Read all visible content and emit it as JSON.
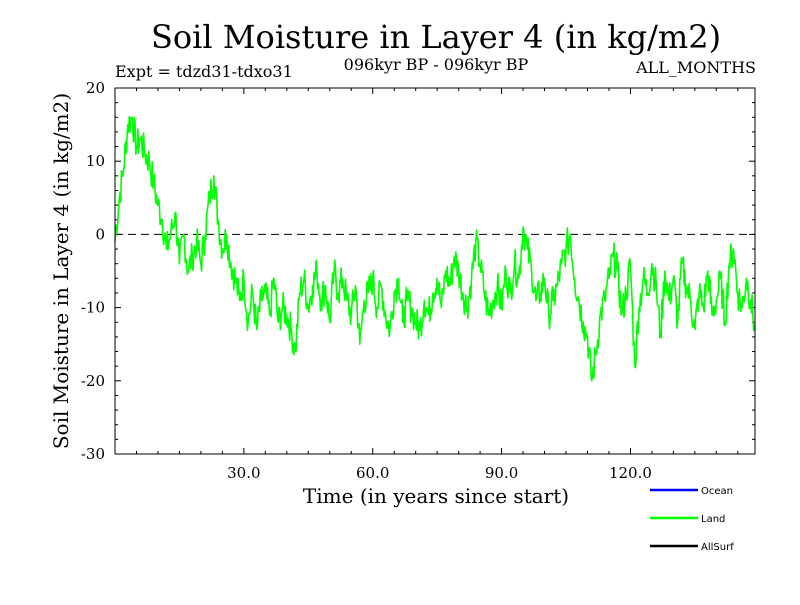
{
  "chart_data": {
    "type": "line",
    "title": "Soil Moisture in Layer 4 (in kg/m2)",
    "subtitle_left": "Expt = tdzd31-tdxo31",
    "subtitle_center": "096kyr BP - 096kyr BP",
    "subtitle_right": "ALL_MONTHS",
    "xlabel": "Time (in years since start)",
    "ylabel": "Soil Moisture in Layer 4 (in kg/m2)",
    "xlim": [
      0,
      149
    ],
    "ylim": [
      -30,
      20
    ],
    "xticks": [
      30,
      60,
      90,
      120
    ],
    "xtick_labels": [
      "30.0",
      "60.0",
      "90.0",
      "120.0"
    ],
    "yticks": [
      -30,
      -20,
      -10,
      0,
      10,
      20
    ],
    "ytick_labels": [
      "-30",
      "-20",
      "-10",
      "0",
      "10",
      "20"
    ],
    "reference_line": {
      "y": 0,
      "style": "dashed",
      "color": "#000000"
    },
    "legend": [
      {
        "name": "Ocean",
        "color": "#0000ff"
      },
      {
        "name": "Land",
        "color": "#00ff00"
      },
      {
        "name": "AllSurf",
        "color": "#000000"
      }
    ],
    "series": [
      {
        "name": "Land",
        "color": "#00ff00",
        "x": [
          0,
          1,
          2,
          3,
          4,
          5,
          6,
          7,
          8,
          9,
          10,
          11,
          12,
          13,
          14,
          15,
          16,
          17,
          18,
          19,
          20,
          21,
          22,
          23,
          24,
          25,
          26,
          27,
          28,
          29,
          30,
          31,
          32,
          33,
          34,
          35,
          36,
          37,
          38,
          39,
          40,
          41,
          42,
          43,
          44,
          45,
          46,
          47,
          48,
          49,
          50,
          51,
          52,
          53,
          54,
          55,
          56,
          57,
          58,
          59,
          60,
          61,
          62,
          63,
          64,
          65,
          66,
          67,
          68,
          69,
          70,
          71,
          72,
          73,
          74,
          75,
          76,
          77,
          78,
          79,
          80,
          81,
          82,
          83,
          84,
          85,
          86,
          87,
          88,
          89,
          90,
          91,
          92,
          93,
          94,
          95,
          96,
          97,
          98,
          99,
          100,
          101,
          102,
          103,
          104,
          105,
          106,
          107,
          108,
          109,
          110,
          111,
          112,
          113,
          114,
          115,
          116,
          117,
          118,
          119,
          120,
          121,
          122,
          123,
          124,
          125,
          126,
          127,
          128,
          129,
          130,
          131,
          132,
          133,
          134,
          135,
          136,
          137,
          138,
          139,
          140,
          141,
          142,
          143,
          144,
          145,
          146,
          147,
          148,
          149
        ],
        "values": [
          -1,
          5,
          9,
          15,
          16,
          12,
          13,
          11,
          10,
          7,
          4,
          2,
          -2,
          0,
          3,
          -4,
          0,
          -5,
          -3,
          -1,
          -4,
          0,
          5,
          8,
          2,
          -2,
          0,
          -4,
          -6,
          -9,
          -6,
          -12,
          -8,
          -13,
          -9,
          -8,
          -11,
          -6,
          -12,
          -10,
          -11,
          -13,
          -16,
          -8,
          -6,
          -10,
          -7,
          -5,
          -9,
          -7,
          -12,
          -5,
          -8,
          -6,
          -9,
          -11,
          -7,
          -15,
          -9,
          -8,
          -6,
          -10,
          -7,
          -11,
          -13,
          -8,
          -6,
          -12,
          -9,
          -10,
          -12,
          -13,
          -9,
          -11,
          -8,
          -6,
          -10,
          -5,
          -7,
          -3,
          -5,
          -8,
          -10,
          -6,
          -1,
          -4,
          -8,
          -11,
          -9,
          -7,
          -10,
          -5,
          -8,
          -4,
          -6,
          1,
          -2,
          -5,
          -9,
          -8,
          -6,
          -11,
          -9,
          -7,
          -4,
          -2,
          0,
          -6,
          -9,
          -12,
          -14,
          -20,
          -16,
          -11,
          -9,
          -6,
          -3,
          -5,
          -11,
          -8,
          -4,
          -18,
          -10,
          -6,
          -8,
          -4,
          -7,
          -14,
          -5,
          -9,
          -6,
          -12,
          -4,
          -7,
          -9,
          -13,
          -8,
          -10,
          -5,
          -11,
          -9,
          -6,
          -12,
          -4,
          -2,
          -8,
          -10,
          -6,
          -9,
          -13
        ]
      }
    ]
  }
}
